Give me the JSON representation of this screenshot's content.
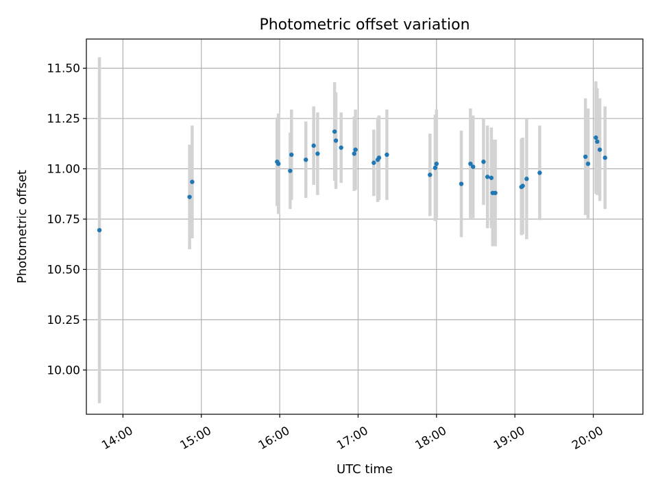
{
  "chart_data": {
    "type": "scatter",
    "title": "Photometric offset variation",
    "xlabel": "UTC time",
    "ylabel": "Photometric offset",
    "xlim": [
      "13:32",
      "20:38"
    ],
    "ylim": [
      9.78,
      11.645
    ],
    "grid": true,
    "x_tick_labels": [
      "14:00",
      "15:00",
      "16:00",
      "17:00",
      "18:00",
      "19:00",
      "20:00"
    ],
    "y_tick_labels": [
      "10.00",
      "10.25",
      "10.50",
      "10.75",
      "11.00",
      "11.25",
      "11.50"
    ],
    "y_ticks": [
      10.0,
      10.25,
      10.5,
      10.75,
      11.0,
      11.25,
      11.5
    ],
    "colors": {
      "point": "#1f77b4",
      "errorbar": "#d3d3d3",
      "grid": "#b0b0b0"
    },
    "points": [
      {
        "time": "13:42",
        "y": 10.695,
        "err": 0.86
      },
      {
        "time": "14:51",
        "y": 10.86,
        "err": 0.26
      },
      {
        "time": "14:53",
        "y": 10.935,
        "err": 0.28
      },
      {
        "time": "15:58",
        "y": 11.035,
        "err": 0.22
      },
      {
        "time": "15:59",
        "y": 11.025,
        "err": 0.25
      },
      {
        "time": "16:08",
        "y": 10.99,
        "err": 0.19
      },
      {
        "time": "16:09",
        "y": 11.07,
        "err": 0.225
      },
      {
        "time": "16:20",
        "y": 11.045,
        "err": 0.19
      },
      {
        "time": "16:26",
        "y": 11.115,
        "err": 0.195
      },
      {
        "time": "16:29",
        "y": 11.075,
        "err": 0.205
      },
      {
        "time": "16:42",
        "y": 11.185,
        "err": 0.245
      },
      {
        "time": "16:43",
        "y": 11.14,
        "err": 0.24
      },
      {
        "time": "16:47",
        "y": 11.105,
        "err": 0.175
      },
      {
        "time": "16:57",
        "y": 11.075,
        "err": 0.185
      },
      {
        "time": "16:58",
        "y": 11.095,
        "err": 0.2
      },
      {
        "time": "17:12",
        "y": 11.03,
        "err": 0.165
      },
      {
        "time": "17:15",
        "y": 11.045,
        "err": 0.21
      },
      {
        "time": "17:16",
        "y": 11.055,
        "err": 0.21
      },
      {
        "time": "17:22",
        "y": 11.07,
        "err": 0.225
      },
      {
        "time": "17:55",
        "y": 10.97,
        "err": 0.205
      },
      {
        "time": "17:59",
        "y": 11.005,
        "err": 0.265
      },
      {
        "time": "18:00",
        "y": 11.025,
        "err": 0.27
      },
      {
        "time": "18:19",
        "y": 10.925,
        "err": 0.265
      },
      {
        "time": "18:26",
        "y": 11.025,
        "err": 0.275
      },
      {
        "time": "18:28",
        "y": 11.01,
        "err": 0.255
      },
      {
        "time": "18:36",
        "y": 11.035,
        "err": 0.215
      },
      {
        "time": "18:39",
        "y": 10.96,
        "err": 0.255
      },
      {
        "time": "18:42",
        "y": 10.955,
        "err": 0.25
      },
      {
        "time": "18:43",
        "y": 10.88,
        "err": 0.265
      },
      {
        "time": "18:45",
        "y": 10.88,
        "err": 0.265
      },
      {
        "time": "19:05",
        "y": 10.91,
        "err": 0.24
      },
      {
        "time": "19:06",
        "y": 10.915,
        "err": 0.24
      },
      {
        "time": "19:09",
        "y": 10.95,
        "err": 0.3
      },
      {
        "time": "19:19",
        "y": 10.98,
        "err": 0.235
      },
      {
        "time": "19:54",
        "y": 11.06,
        "err": 0.29
      },
      {
        "time": "19:56",
        "y": 11.025,
        "err": 0.275
      },
      {
        "time": "20:02",
        "y": 11.155,
        "err": 0.28
      },
      {
        "time": "20:03",
        "y": 11.135,
        "err": 0.265
      },
      {
        "time": "20:05",
        "y": 11.095,
        "err": 0.255
      },
      {
        "time": "20:09",
        "y": 11.055,
        "err": 0.255
      }
    ]
  }
}
